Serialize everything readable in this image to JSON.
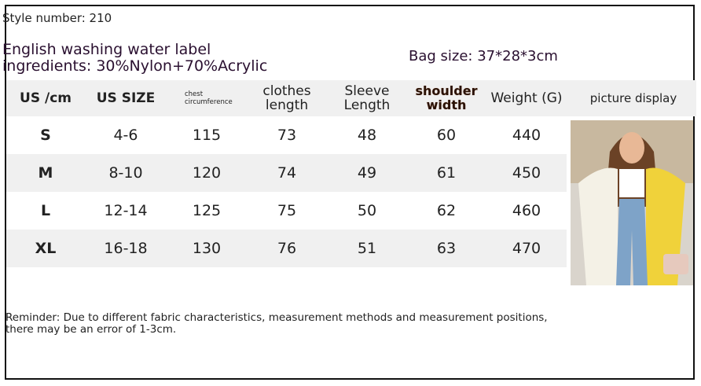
{
  "header": {
    "style_number": "Style number: 210",
    "label_line": "English washing water label",
    "ingredients": "ingredients: 30%Nylon+70%Acrylic",
    "bag_size": "Bag size: 37*28*3cm"
  },
  "table": {
    "columns": [
      "US /cm",
      "US SIZE",
      "chest circumference",
      "clothes length",
      "Sleeve Length",
      "shoulder width",
      "Weight (G)",
      "picture display"
    ],
    "rows": [
      [
        "S",
        "4-6",
        115,
        73,
        48,
        60,
        440
      ],
      [
        "M",
        "8-10",
        120,
        74,
        49,
        61,
        450
      ],
      [
        "L",
        "12-14",
        125,
        75,
        50,
        62,
        460
      ],
      [
        "XL",
        "16-18",
        130,
        76,
        51,
        63,
        470
      ]
    ]
  },
  "reminder": "Reminder: Due to different fabric characteristics, measurement methods and measurement positions, there may be an error of 1-3cm."
}
